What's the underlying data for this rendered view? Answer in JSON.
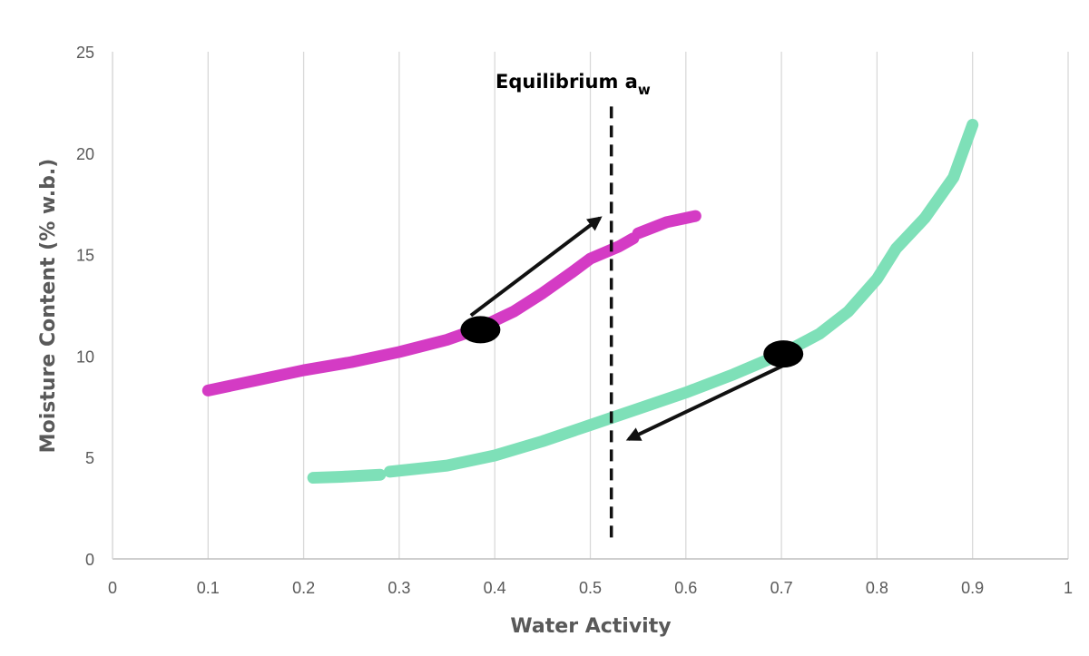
{
  "chart_data": {
    "type": "line",
    "xlabel": "Water Activity",
    "ylabel": "Moisture Content (% w.b.)",
    "xlim": [
      0,
      1
    ],
    "ylim": [
      0,
      25
    ],
    "x_ticks": [
      0,
      0.1,
      0.2,
      0.3,
      0.4,
      0.5,
      0.6,
      0.7,
      0.8,
      0.9,
      1
    ],
    "x_tick_labels": [
      "0",
      "0.1",
      "0.2",
      "0.3",
      "0.4",
      "0.5",
      "0.6",
      "0.7",
      "0.8",
      "0.9",
      "1"
    ],
    "y_ticks": [
      0,
      5,
      10,
      15,
      20,
      25
    ],
    "y_tick_labels": [
      "0",
      "5",
      "10",
      "15",
      "20",
      "25"
    ],
    "grid": "vertical",
    "series": [
      {
        "color": "#d43bc4",
        "segments": [
          {
            "x": [
              0.1,
              0.15,
              0.2,
              0.25,
              0.3,
              0.35,
              0.38,
              0.42,
              0.45,
              0.48,
              0.5,
              0.53,
              0.545
            ],
            "y": [
              8.3,
              8.8,
              9.3,
              9.7,
              10.2,
              10.8,
              11.3,
              12.2,
              13.1,
              14.1,
              14.8,
              15.4,
              15.8
            ]
          },
          {
            "x": [
              0.55,
              0.58,
              0.61
            ],
            "y": [
              16.05,
              16.6,
              16.9
            ]
          }
        ]
      },
      {
        "color": "#7ee0b8",
        "segments": [
          {
            "x": [
              0.21,
              0.24,
              0.28
            ],
            "y": [
              4.0,
              4.05,
              4.15
            ]
          },
          {
            "x": [
              0.29,
              0.35,
              0.4,
              0.45,
              0.5,
              0.55,
              0.6,
              0.65,
              0.7,
              0.74,
              0.77,
              0.8,
              0.82,
              0.85,
              0.88,
              0.9
            ],
            "y": [
              4.3,
              4.6,
              5.1,
              5.8,
              6.6,
              7.4,
              8.2,
              9.1,
              10.1,
              11.1,
              12.2,
              13.8,
              15.3,
              16.8,
              18.8,
              21.4
            ]
          }
        ]
      }
    ],
    "equilibrium_line": {
      "x": 0.522,
      "y_range": [
        0.9,
        22.3
      ],
      "label_main": "Equilibrium a",
      "label_sub": "w"
    },
    "points": [
      {
        "x": 0.385,
        "y": 11.3
      },
      {
        "x": 0.702,
        "y": 10.1
      }
    ],
    "arrows": [
      {
        "from": [
          0.375,
          12.0
        ],
        "to": [
          0.51,
          16.8
        ]
      },
      {
        "from": [
          0.705,
          9.6
        ],
        "to": [
          0.54,
          5.9
        ]
      }
    ]
  }
}
